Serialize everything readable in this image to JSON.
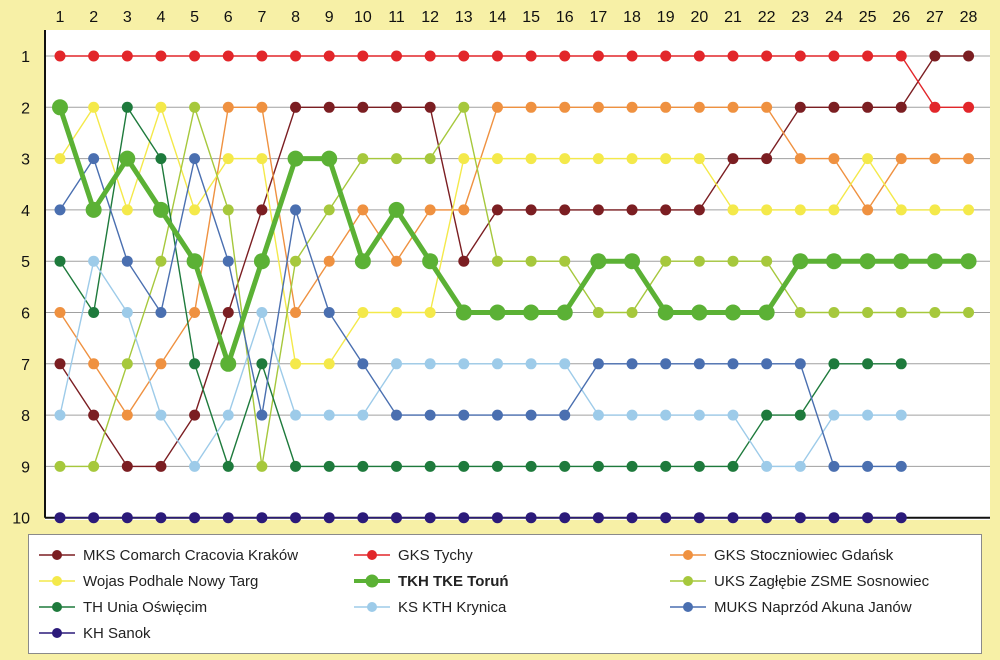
{
  "chart_data": {
    "type": "line",
    "x": [
      1,
      2,
      3,
      4,
      5,
      6,
      7,
      8,
      9,
      10,
      11,
      12,
      13,
      14,
      15,
      16,
      17,
      18,
      19,
      20,
      21,
      22,
      23,
      24,
      25,
      26,
      27,
      28
    ],
    "y_ticks": [
      1,
      2,
      3,
      4,
      5,
      6,
      7,
      8,
      9,
      10
    ],
    "ylim": [
      1,
      10
    ],
    "y_inverted": true,
    "grid": true,
    "legend_position": "bottom",
    "highlight_series": "TKH TKE Toruń",
    "series": [
      {
        "name": "MKS Comarch Cracovia Kraków",
        "color": "#7b1e22",
        "values": [
          7,
          8,
          9,
          9,
          8,
          6,
          4,
          2,
          2,
          2,
          2,
          2,
          5,
          4,
          4,
          4,
          4,
          4,
          4,
          4,
          3,
          3,
          2,
          2,
          2,
          2,
          1,
          1
        ]
      },
      {
        "name": "GKS Tychy",
        "color": "#e2262a",
        "values": [
          1,
          1,
          1,
          1,
          1,
          1,
          1,
          1,
          1,
          1,
          1,
          1,
          1,
          1,
          1,
          1,
          1,
          1,
          1,
          1,
          1,
          1,
          1,
          1,
          1,
          1,
          2,
          2
        ]
      },
      {
        "name": "GKS Stoczniowiec Gdańsk",
        "color": "#ef9140",
        "values": [
          6,
          7,
          8,
          7,
          6,
          2,
          2,
          6,
          5,
          4,
          5,
          4,
          4,
          2,
          2,
          2,
          2,
          2,
          2,
          2,
          2,
          2,
          3,
          3,
          4,
          3,
          3,
          3
        ]
      },
      {
        "name": "Wojas Podhale Nowy Targ",
        "color": "#f4e94a",
        "values": [
          3,
          2,
          4,
          2,
          4,
          3,
          3,
          7,
          7,
          6,
          6,
          6,
          3,
          3,
          3,
          3,
          3,
          3,
          3,
          3,
          4,
          4,
          4,
          4,
          3,
          4,
          4,
          4
        ]
      },
      {
        "name": "TKH TKE Toruń",
        "color": "#5bb135",
        "values": [
          2,
          4,
          3,
          4,
          5,
          7,
          5,
          3,
          3,
          5,
          4,
          5,
          6,
          6,
          6,
          6,
          5,
          5,
          6,
          6,
          6,
          6,
          5,
          5,
          5,
          5,
          5,
          5
        ]
      },
      {
        "name": "UKS Zagłębie ZSME Sosnowiec",
        "color": "#a6c83c",
        "values": [
          9,
          9,
          7,
          5,
          2,
          4,
          9,
          5,
          4,
          3,
          3,
          3,
          2,
          5,
          5,
          5,
          6,
          6,
          5,
          5,
          5,
          5,
          6,
          6,
          6,
          6,
          6,
          6
        ]
      },
      {
        "name": "TH Unia Oświęcim",
        "color": "#1e7a3c",
        "values": [
          5,
          6,
          2,
          3,
          7,
          9,
          7,
          9,
          9,
          9,
          9,
          9,
          9,
          9,
          9,
          9,
          9,
          9,
          9,
          9,
          9,
          8,
          8,
          7,
          7,
          7,
          null,
          null
        ]
      },
      {
        "name": "KS KTH Krynica",
        "color": "#9dcbe9",
        "values": [
          8,
          5,
          6,
          8,
          9,
          8,
          6,
          8,
          8,
          8,
          7,
          7,
          7,
          7,
          7,
          7,
          8,
          8,
          8,
          8,
          8,
          9,
          9,
          8,
          8,
          8,
          null,
          null
        ]
      },
      {
        "name": "MUKS Naprzód Akuna Janów",
        "color": "#4a6fb0",
        "values": [
          4,
          3,
          5,
          6,
          3,
          5,
          8,
          4,
          6,
          7,
          8,
          8,
          8,
          8,
          8,
          8,
          7,
          7,
          7,
          7,
          7,
          7,
          7,
          9,
          9,
          9,
          null,
          null
        ]
      },
      {
        "name": "KH Sanok",
        "color": "#2b1a7a",
        "values": [
          10,
          10,
          10,
          10,
          10,
          10,
          10,
          10,
          10,
          10,
          10,
          10,
          10,
          10,
          10,
          10,
          10,
          10,
          10,
          10,
          10,
          10,
          10,
          10,
          10,
          10,
          null,
          null
        ]
      }
    ]
  }
}
